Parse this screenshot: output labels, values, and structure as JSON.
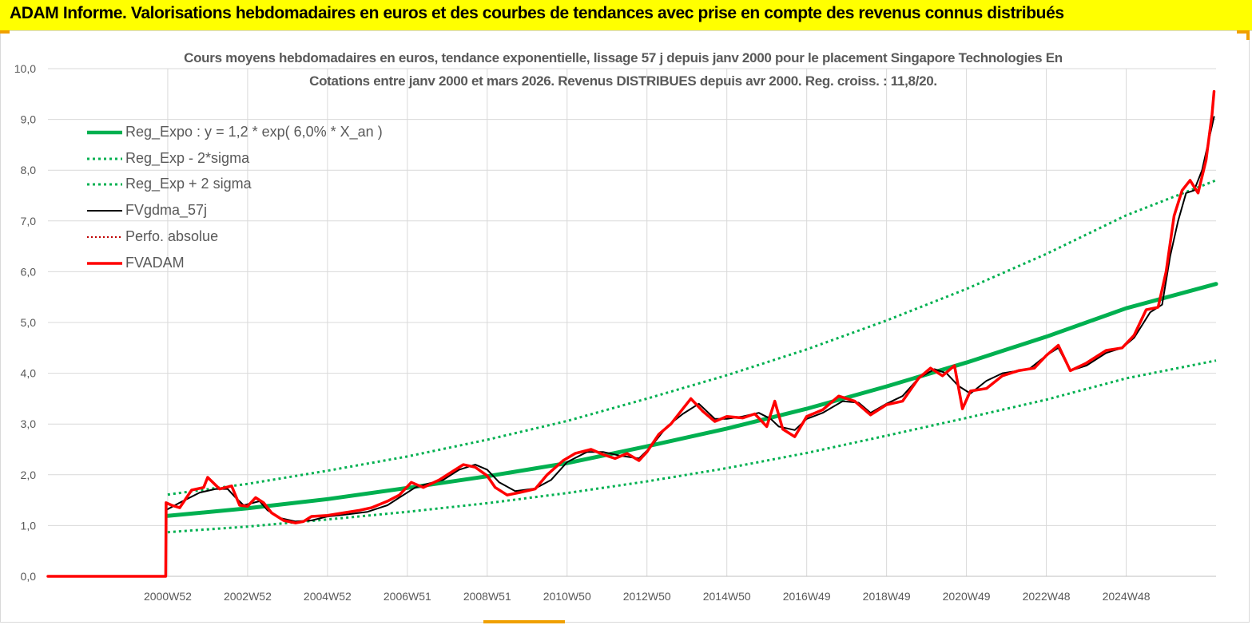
{
  "header": {
    "title": "ADAM Informe. Valorisations hebdomadaires en euros et des courbes de tendances avec prise en compte des revenus connus distribués"
  },
  "colors": {
    "banner": "#ffff00",
    "reg_expo": "#00b050",
    "bands": "#00b050",
    "fvgdma": "#000000",
    "perfo": "#c00000",
    "fvadam": "#ff0000",
    "grid": "#d9d9d9",
    "text": "#595959"
  },
  "chart_data": {
    "type": "line",
    "title_line1": "Cours moyens hebdomadaires en euros, tendance exponentielle, lissage 57 j depuis janv 2000  pour le placement Singapore Technologies En",
    "title_line2": "Cotations entre janv 2000 et mars 2026. Revenus DISTRIBUES depuis avr 2000. Reg. croiss. : 11,8/20.",
    "xlabel": "",
    "ylabel": "",
    "ylim": [
      0,
      10
    ],
    "y_ticks": [
      "0,0",
      "1,0",
      "2,0",
      "3,0",
      "4,0",
      "5,0",
      "6,0",
      "7,0",
      "8,0",
      "9,0",
      "10,0"
    ],
    "x_range_years": [
      1997.0,
      2026.25
    ],
    "x_ticks": [
      {
        "label": "2000W52",
        "year": 2000.0
      },
      {
        "label": "2002W52",
        "year": 2002.0
      },
      {
        "label": "2004W52",
        "year": 2004.0
      },
      {
        "label": "2006W51",
        "year": 2006.0
      },
      {
        "label": "2008W51",
        "year": 2008.0
      },
      {
        "label": "2010W50",
        "year": 2010.0
      },
      {
        "label": "2012W50",
        "year": 2012.0
      },
      {
        "label": "2014W50",
        "year": 2014.0
      },
      {
        "label": "2016W49",
        "year": 2016.0
      },
      {
        "label": "2018W49",
        "year": 2018.0
      },
      {
        "label": "2020W49",
        "year": 2020.0
      },
      {
        "label": "2022W48",
        "year": 2022.0
      },
      {
        "label": "2024W48",
        "year": 2024.0
      }
    ],
    "grid": true,
    "legend_position": "top-left",
    "series": [
      {
        "name": "Reg_Expo : y = 1,2 * exp( 6,0% *  X_an )",
        "style": "thick-solid",
        "points": [
          [
            2000.0,
            1.19
          ],
          [
            2002.0,
            1.34
          ],
          [
            2004.0,
            1.52
          ],
          [
            2006.0,
            1.74
          ],
          [
            2008.0,
            1.97
          ],
          [
            2010.0,
            2.23
          ],
          [
            2012.0,
            2.56
          ],
          [
            2014.0,
            2.91
          ],
          [
            2016.0,
            3.3
          ],
          [
            2018.0,
            3.74
          ],
          [
            2020.0,
            4.21
          ],
          [
            2022.0,
            4.72
          ],
          [
            2024.0,
            5.28
          ],
          [
            2026.25,
            5.76
          ]
        ]
      },
      {
        "name": "Reg_Exp - 2*sigma",
        "style": "dotted",
        "points": [
          [
            2000.0,
            0.87
          ],
          [
            2002.0,
            0.98
          ],
          [
            2004.0,
            1.12
          ],
          [
            2006.0,
            1.27
          ],
          [
            2008.0,
            1.44
          ],
          [
            2010.0,
            1.64
          ],
          [
            2012.0,
            1.87
          ],
          [
            2014.0,
            2.13
          ],
          [
            2016.0,
            2.43
          ],
          [
            2018.0,
            2.77
          ],
          [
            2020.0,
            3.12
          ],
          [
            2022.0,
            3.48
          ],
          [
            2024.0,
            3.9
          ],
          [
            2026.25,
            4.25
          ]
        ]
      },
      {
        "name": "Reg_Exp + 2 sigma",
        "style": "dotted",
        "points": [
          [
            2000.0,
            1.61
          ],
          [
            2002.0,
            1.82
          ],
          [
            2004.0,
            2.08
          ],
          [
            2006.0,
            2.36
          ],
          [
            2008.0,
            2.69
          ],
          [
            2010.0,
            3.06
          ],
          [
            2012.0,
            3.5
          ],
          [
            2014.0,
            3.96
          ],
          [
            2016.0,
            4.47
          ],
          [
            2018.0,
            5.04
          ],
          [
            2020.0,
            5.66
          ],
          [
            2022.0,
            6.35
          ],
          [
            2024.0,
            7.11
          ],
          [
            2026.25,
            7.8
          ]
        ]
      },
      {
        "name": "FVgdma_57j",
        "style": "thin-solid",
        "points": [
          [
            1999.95,
            1.3
          ],
          [
            2000.3,
            1.45
          ],
          [
            2000.8,
            1.65
          ],
          [
            2001.2,
            1.72
          ],
          [
            2001.5,
            1.72
          ],
          [
            2001.7,
            1.55
          ],
          [
            2001.9,
            1.4
          ],
          [
            2002.3,
            1.48
          ],
          [
            2002.5,
            1.3
          ],
          [
            2002.8,
            1.15
          ],
          [
            2003.2,
            1.08
          ],
          [
            2003.6,
            1.1
          ],
          [
            2004.0,
            1.18
          ],
          [
            2004.5,
            1.22
          ],
          [
            2005.0,
            1.27
          ],
          [
            2005.5,
            1.4
          ],
          [
            2005.8,
            1.55
          ],
          [
            2006.2,
            1.75
          ],
          [
            2006.5,
            1.82
          ],
          [
            2006.9,
            1.9
          ],
          [
            2007.3,
            2.1
          ],
          [
            2007.7,
            2.2
          ],
          [
            2008.0,
            2.1
          ],
          [
            2008.3,
            1.85
          ],
          [
            2008.7,
            1.68
          ],
          [
            2009.2,
            1.73
          ],
          [
            2009.6,
            1.9
          ],
          [
            2010.0,
            2.25
          ],
          [
            2010.5,
            2.45
          ],
          [
            2010.9,
            2.45
          ],
          [
            2011.3,
            2.38
          ],
          [
            2011.8,
            2.32
          ],
          [
            2012.1,
            2.55
          ],
          [
            2012.5,
            2.95
          ],
          [
            2012.9,
            3.2
          ],
          [
            2013.3,
            3.4
          ],
          [
            2013.7,
            3.1
          ],
          [
            2014.0,
            3.1
          ],
          [
            2014.4,
            3.15
          ],
          [
            2014.8,
            3.22
          ],
          [
            2015.1,
            3.1
          ],
          [
            2015.3,
            2.95
          ],
          [
            2015.7,
            2.88
          ],
          [
            2016.0,
            3.1
          ],
          [
            2016.4,
            3.22
          ],
          [
            2016.9,
            3.45
          ],
          [
            2017.3,
            3.42
          ],
          [
            2017.6,
            3.22
          ],
          [
            2018.0,
            3.4
          ],
          [
            2018.4,
            3.55
          ],
          [
            2018.8,
            3.9
          ],
          [
            2019.2,
            4.08
          ],
          [
            2019.5,
            4.0
          ],
          [
            2019.8,
            3.75
          ],
          [
            2020.1,
            3.6
          ],
          [
            2020.5,
            3.85
          ],
          [
            2020.9,
            4.0
          ],
          [
            2021.3,
            4.05
          ],
          [
            2021.6,
            4.1
          ],
          [
            2022.0,
            4.35
          ],
          [
            2022.3,
            4.5
          ],
          [
            2022.6,
            4.05
          ],
          [
            2023.0,
            4.15
          ],
          [
            2023.5,
            4.4
          ],
          [
            2023.9,
            4.5
          ],
          [
            2024.2,
            4.7
          ],
          [
            2024.6,
            5.2
          ],
          [
            2024.9,
            5.35
          ],
          [
            2025.1,
            6.3
          ],
          [
            2025.3,
            7.0
          ],
          [
            2025.5,
            7.55
          ],
          [
            2025.7,
            7.6
          ],
          [
            2025.9,
            8.0
          ],
          [
            2026.1,
            8.7
          ],
          [
            2026.2,
            9.05
          ]
        ]
      },
      {
        "name": "Perfo. absolue",
        "style": "dotted-red",
        "points": []
      },
      {
        "name": "FVADAM",
        "style": "thick-solid-red",
        "points": [
          [
            1997.0,
            0.0
          ],
          [
            1999.95,
            0.0
          ],
          [
            1999.96,
            1.45
          ],
          [
            2000.1,
            1.4
          ],
          [
            2000.3,
            1.35
          ],
          [
            2000.6,
            1.7
          ],
          [
            2000.9,
            1.75
          ],
          [
            2001.0,
            1.95
          ],
          [
            2001.3,
            1.72
          ],
          [
            2001.6,
            1.78
          ],
          [
            2001.8,
            1.4
          ],
          [
            2002.0,
            1.38
          ],
          [
            2002.2,
            1.55
          ],
          [
            2002.4,
            1.45
          ],
          [
            2002.6,
            1.25
          ],
          [
            2002.9,
            1.1
          ],
          [
            2003.2,
            1.05
          ],
          [
            2003.4,
            1.08
          ],
          [
            2003.6,
            1.18
          ],
          [
            2004.0,
            1.2
          ],
          [
            2004.4,
            1.25
          ],
          [
            2004.8,
            1.3
          ],
          [
            2005.1,
            1.35
          ],
          [
            2005.5,
            1.48
          ],
          [
            2005.8,
            1.6
          ],
          [
            2006.1,
            1.85
          ],
          [
            2006.4,
            1.75
          ],
          [
            2006.8,
            1.9
          ],
          [
            2007.1,
            2.05
          ],
          [
            2007.4,
            2.2
          ],
          [
            2007.7,
            2.15
          ],
          [
            2008.0,
            1.98
          ],
          [
            2008.2,
            1.75
          ],
          [
            2008.5,
            1.6
          ],
          [
            2008.8,
            1.65
          ],
          [
            2009.2,
            1.72
          ],
          [
            2009.5,
            2.0
          ],
          [
            2009.9,
            2.28
          ],
          [
            2010.2,
            2.42
          ],
          [
            2010.6,
            2.5
          ],
          [
            2010.9,
            2.4
          ],
          [
            2011.2,
            2.32
          ],
          [
            2011.5,
            2.42
          ],
          [
            2011.8,
            2.28
          ],
          [
            2012.0,
            2.45
          ],
          [
            2012.3,
            2.8
          ],
          [
            2012.6,
            3.0
          ],
          [
            2012.9,
            3.3
          ],
          [
            2013.1,
            3.5
          ],
          [
            2013.4,
            3.25
          ],
          [
            2013.7,
            3.05
          ],
          [
            2014.0,
            3.15
          ],
          [
            2014.4,
            3.12
          ],
          [
            2014.7,
            3.2
          ],
          [
            2015.0,
            2.95
          ],
          [
            2015.2,
            3.45
          ],
          [
            2015.4,
            2.9
          ],
          [
            2015.7,
            2.75
          ],
          [
            2016.0,
            3.15
          ],
          [
            2016.4,
            3.28
          ],
          [
            2016.8,
            3.55
          ],
          [
            2017.2,
            3.45
          ],
          [
            2017.6,
            3.18
          ],
          [
            2018.0,
            3.38
          ],
          [
            2018.4,
            3.45
          ],
          [
            2018.8,
            3.9
          ],
          [
            2019.1,
            4.1
          ],
          [
            2019.4,
            3.95
          ],
          [
            2019.7,
            4.15
          ],
          [
            2019.9,
            3.3
          ],
          [
            2020.1,
            3.65
          ],
          [
            2020.5,
            3.7
          ],
          [
            2020.9,
            3.95
          ],
          [
            2021.3,
            4.05
          ],
          [
            2021.7,
            4.1
          ],
          [
            2022.0,
            4.35
          ],
          [
            2022.3,
            4.55
          ],
          [
            2022.6,
            4.05
          ],
          [
            2023.0,
            4.2
          ],
          [
            2023.5,
            4.45
          ],
          [
            2023.9,
            4.5
          ],
          [
            2024.2,
            4.75
          ],
          [
            2024.5,
            5.25
          ],
          [
            2024.8,
            5.3
          ],
          [
            2025.0,
            6.0
          ],
          [
            2025.2,
            7.1
          ],
          [
            2025.4,
            7.6
          ],
          [
            2025.6,
            7.8
          ],
          [
            2025.8,
            7.55
          ],
          [
            2026.0,
            8.2
          ],
          [
            2026.15,
            9.1
          ],
          [
            2026.2,
            9.55
          ]
        ]
      }
    ]
  }
}
